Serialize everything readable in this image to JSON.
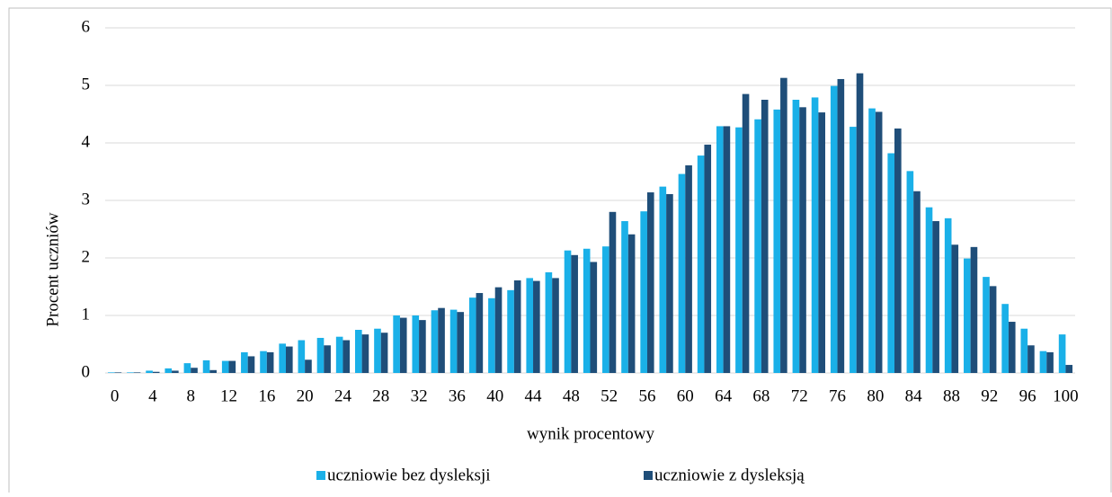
{
  "chart_data": {
    "type": "bar",
    "x_label": "wynik procentowy",
    "y_label": "Procent uczniów",
    "categories": [
      0,
      null,
      4,
      null,
      8,
      null,
      12,
      null,
      16,
      null,
      20,
      null,
      24,
      null,
      28,
      null,
      32,
      null,
      36,
      null,
      40,
      null,
      44,
      null,
      48,
      null,
      52,
      null,
      56,
      null,
      60,
      null,
      64,
      null,
      68,
      null,
      72,
      null,
      76,
      null,
      80,
      null,
      84,
      null,
      88,
      null,
      92,
      null,
      96,
      null,
      100
    ],
    "series": [
      {
        "name": "uczniowie bez dysleksji",
        "color": "#1ab0e8",
        "values": [
          0.01,
          0.01,
          0.04,
          0.08,
          0.17,
          0.22,
          0.21,
          0.36,
          0.38,
          0.51,
          0.57,
          0.61,
          0.63,
          0.75,
          0.77,
          1.0,
          1.0,
          1.09,
          1.1,
          1.31,
          1.3,
          1.44,
          1.65,
          1.75,
          2.13,
          2.16,
          2.2,
          2.64,
          2.81,
          3.24,
          3.46,
          3.78,
          4.29,
          4.27,
          4.41,
          4.58,
          4.75,
          4.79,
          4.99,
          4.28,
          4.6,
          3.82,
          3.51,
          2.88,
          2.69,
          1.99,
          1.67,
          1.2,
          0.77,
          0.38,
          0.67
        ]
      },
      {
        "name": "uczniowie z dysleksją",
        "color": "#1f4e79",
        "values": [
          0.01,
          0.01,
          0.02,
          0.04,
          0.09,
          0.05,
          0.21,
          0.29,
          0.36,
          0.46,
          0.23,
          0.48,
          0.57,
          0.67,
          0.7,
          0.96,
          0.92,
          1.13,
          1.06,
          1.39,
          1.49,
          1.61,
          1.6,
          1.65,
          2.05,
          1.93,
          2.8,
          2.41,
          3.14,
          3.11,
          3.61,
          3.97,
          4.29,
          4.85,
          4.75,
          5.13,
          4.62,
          4.53,
          5.11,
          5.21,
          4.54,
          4.25,
          3.16,
          2.64,
          2.23,
          2.19,
          1.51,
          0.89,
          0.48,
          0.36,
          0.14
        ]
      }
    ],
    "ylim": [
      0,
      6
    ],
    "yticks": [
      0,
      1,
      2,
      3,
      4,
      5,
      6
    ],
    "grid": true,
    "legend": "bottom"
  }
}
